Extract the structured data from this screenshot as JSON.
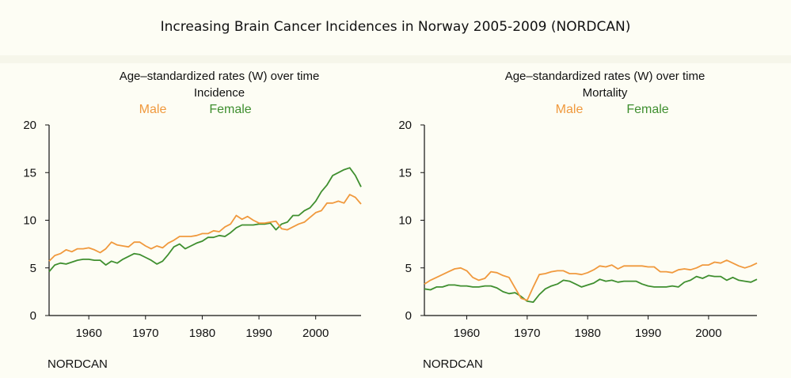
{
  "page_title": "Increasing Brain Cancer Incidences in Norway 2005-2009 (NORDCAN)",
  "colors": {
    "male": "#f0993d",
    "female": "#3f8f2f",
    "axis": "#111111"
  },
  "chart_data": [
    {
      "type": "line",
      "title": "Age–standardized rates (W) over time",
      "subtitle": "Incidence",
      "source": "NORDCAN",
      "xlim": [
        1953,
        2008
      ],
      "ylim": [
        0,
        20
      ],
      "xticks": [
        1960,
        1970,
        1980,
        1990,
        2000
      ],
      "yticks": [
        0,
        5,
        10,
        15,
        20
      ],
      "x": [
        1953,
        1954,
        1955,
        1956,
        1957,
        1958,
        1959,
        1960,
        1961,
        1962,
        1963,
        1964,
        1965,
        1966,
        1967,
        1968,
        1969,
        1970,
        1971,
        1972,
        1973,
        1974,
        1975,
        1976,
        1977,
        1978,
        1979,
        1980,
        1981,
        1982,
        1983,
        1984,
        1985,
        1986,
        1987,
        1988,
        1989,
        1990,
        1991,
        1992,
        1993,
        1994,
        1995,
        1996,
        1997,
        1998,
        1999,
        2000,
        2001,
        2002,
        2003,
        2004,
        2005,
        2006,
        2007,
        2008
      ],
      "series": [
        {
          "name": "Male",
          "color": "#f0993d",
          "values": [
            5.7,
            6.3,
            6.5,
            6.9,
            6.7,
            7.0,
            7.0,
            7.1,
            6.9,
            6.6,
            7.0,
            7.7,
            7.4,
            7.3,
            7.2,
            7.7,
            7.7,
            7.3,
            7.0,
            7.3,
            7.1,
            7.6,
            7.9,
            8.3,
            8.3,
            8.3,
            8.4,
            8.6,
            8.6,
            8.9,
            8.8,
            9.3,
            9.6,
            10.5,
            10.1,
            10.4,
            10.0,
            9.7,
            9.7,
            9.8,
            9.9,
            9.1,
            9.0,
            9.3,
            9.6,
            9.8,
            10.3,
            10.8,
            11.0,
            11.8,
            11.8,
            12.0,
            11.8,
            12.7,
            12.4,
            11.7
          ]
        },
        {
          "name": "Female",
          "color": "#3f8f2f",
          "values": [
            4.6,
            5.3,
            5.5,
            5.4,
            5.6,
            5.8,
            5.9,
            5.9,
            5.8,
            5.8,
            5.3,
            5.7,
            5.5,
            5.9,
            6.2,
            6.5,
            6.4,
            6.1,
            5.8,
            5.4,
            5.7,
            6.4,
            7.2,
            7.5,
            7.0,
            7.3,
            7.6,
            7.8,
            8.2,
            8.2,
            8.4,
            8.3,
            8.7,
            9.2,
            9.5,
            9.5,
            9.5,
            9.6,
            9.6,
            9.7,
            9.0,
            9.6,
            9.8,
            10.5,
            10.5,
            11.0,
            11.3,
            12.0,
            13.0,
            13.7,
            14.7,
            15.0,
            15.3,
            15.5,
            14.7,
            13.5
          ]
        }
      ]
    },
    {
      "type": "line",
      "title": "Age–standardized rates (W) over time",
      "subtitle": "Mortality",
      "source": "NORDCAN",
      "xlim": [
        1953,
        2008
      ],
      "ylim": [
        0,
        20
      ],
      "xticks": [
        1960,
        1970,
        1980,
        1990,
        2000
      ],
      "yticks": [
        0,
        5,
        10,
        15,
        20
      ],
      "x": [
        1953,
        1954,
        1955,
        1956,
        1957,
        1958,
        1959,
        1960,
        1961,
        1962,
        1963,
        1964,
        1965,
        1966,
        1967,
        1968,
        1969,
        1970,
        1971,
        1972,
        1973,
        1974,
        1975,
        1976,
        1977,
        1978,
        1979,
        1980,
        1981,
        1982,
        1983,
        1984,
        1985,
        1986,
        1987,
        1988,
        1989,
        1990,
        1991,
        1992,
        1993,
        1994,
        1995,
        1996,
        1997,
        1998,
        1999,
        2000,
        2001,
        2002,
        2003,
        2004,
        2005,
        2006,
        2007,
        2008
      ],
      "series": [
        {
          "name": "Male",
          "color": "#f0993d",
          "values": [
            3.3,
            3.7,
            4.0,
            4.3,
            4.6,
            4.9,
            5.0,
            4.7,
            4.0,
            3.7,
            3.9,
            4.6,
            4.5,
            4.2,
            4.0,
            2.9,
            1.8,
            1.6,
            3.0,
            4.3,
            4.4,
            4.6,
            4.7,
            4.7,
            4.4,
            4.4,
            4.3,
            4.5,
            4.8,
            5.2,
            5.1,
            5.3,
            4.9,
            5.2,
            5.2,
            5.2,
            5.2,
            5.1,
            5.1,
            4.6,
            4.6,
            4.5,
            4.8,
            4.9,
            4.8,
            5.0,
            5.3,
            5.3,
            5.6,
            5.5,
            5.8,
            5.5,
            5.2,
            5.0,
            5.2,
            5.5
          ]
        },
        {
          "name": "Female",
          "color": "#3f8f2f",
          "values": [
            2.8,
            2.7,
            3.0,
            3.0,
            3.2,
            3.2,
            3.1,
            3.1,
            3.0,
            3.0,
            3.1,
            3.1,
            2.9,
            2.5,
            2.3,
            2.4,
            2.0,
            1.5,
            1.4,
            2.2,
            2.8,
            3.1,
            3.3,
            3.7,
            3.6,
            3.3,
            3.0,
            3.2,
            3.4,
            3.8,
            3.6,
            3.7,
            3.5,
            3.6,
            3.6,
            3.6,
            3.3,
            3.1,
            3.0,
            3.0,
            3.0,
            3.1,
            3.0,
            3.5,
            3.7,
            4.1,
            3.9,
            4.2,
            4.1,
            4.1,
            3.7,
            4.0,
            3.7,
            3.6,
            3.5,
            3.8
          ]
        }
      ]
    }
  ]
}
